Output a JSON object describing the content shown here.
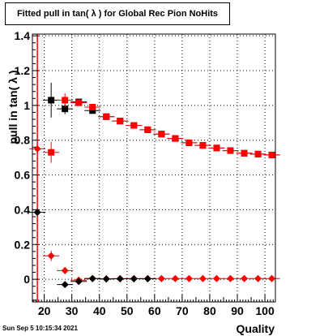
{
  "chart_data": {
    "type": "scatter",
    "title": "Fitted pull in tan( λ ) for Global Rec Pion NoHits",
    "xlabel": "Quality",
    "ylabel": "pull in tan( λ )",
    "xlim": [
      15.7,
      103.8
    ],
    "ylim": [
      -0.13,
      1.41
    ],
    "xticks": [
      20,
      30,
      40,
      50,
      60,
      70,
      80,
      90,
      100
    ],
    "yticks": [
      0,
      0.2,
      0.4,
      0.6,
      0.8,
      1,
      1.2,
      1.4
    ],
    "ytick_labels": [
      "0",
      "0.2",
      "0.4",
      "0.6",
      "0.8",
      "1",
      "1.2",
      "1.4"
    ],
    "grid": true,
    "series": [
      {
        "color": "#000000",
        "marker": "square",
        "points": [
          {
            "x": 22.5,
            "y": 1.03,
            "err": 0.1
          },
          {
            "x": 27.5,
            "y": 0.98,
            "err": 0.03
          },
          {
            "x": 32.5,
            "y": 1.02,
            "err": 0.015
          },
          {
            "x": 37.5,
            "y": 0.97,
            "err": 0.015
          },
          {
            "x": 42.5,
            "y": 0.935,
            "err": 0.01
          },
          {
            "x": 47.5,
            "y": 0.91,
            "err": 0.008
          },
          {
            "x": 52.5,
            "y": 0.885,
            "err": 0.008
          },
          {
            "x": 57.5,
            "y": 0.86,
            "err": 0.008
          },
          {
            "x": 62.5,
            "y": 0.835,
            "err": 0.008
          },
          {
            "x": 67.5,
            "y": 0.81,
            "err": 0.008
          },
          {
            "x": 72.5,
            "y": 0.785,
            "err": 0.008
          },
          {
            "x": 77.5,
            "y": 0.77,
            "err": 0.008
          },
          {
            "x": 82.5,
            "y": 0.755,
            "err": 0.008
          },
          {
            "x": 87.5,
            "y": 0.74,
            "err": 0.008
          },
          {
            "x": 92.5,
            "y": 0.725,
            "err": 0.008
          },
          {
            "x": 97.5,
            "y": 0.72,
            "err": 0.008
          },
          {
            "x": 102.5,
            "y": 0.715,
            "err": 0.008
          }
        ]
      },
      {
        "color": "#ff0000",
        "marker": "square",
        "points": [
          {
            "x": 22.5,
            "y": 0.73,
            "err": 0.06
          },
          {
            "x": 27.5,
            "y": 1.03,
            "err": 0.04
          },
          {
            "x": 32.5,
            "y": 1.015,
            "err": 0.015
          },
          {
            "x": 37.5,
            "y": 0.99,
            "err": 0.015
          },
          {
            "x": 42.5,
            "y": 0.935,
            "err": 0.01
          },
          {
            "x": 47.5,
            "y": 0.91,
            "err": 0.008
          },
          {
            "x": 52.5,
            "y": 0.885,
            "err": 0.008
          },
          {
            "x": 57.5,
            "y": 0.86,
            "err": 0.008
          },
          {
            "x": 62.5,
            "y": 0.835,
            "err": 0.008
          },
          {
            "x": 67.5,
            "y": 0.81,
            "err": 0.008
          },
          {
            "x": 72.5,
            "y": 0.785,
            "err": 0.008
          },
          {
            "x": 77.5,
            "y": 0.77,
            "err": 0.008
          },
          {
            "x": 82.5,
            "y": 0.755,
            "err": 0.008
          },
          {
            "x": 87.5,
            "y": 0.74,
            "err": 0.008
          },
          {
            "x": 92.5,
            "y": 0.725,
            "err": 0.008
          },
          {
            "x": 97.5,
            "y": 0.72,
            "err": 0.008
          },
          {
            "x": 102.5,
            "y": 0.715,
            "err": 0.008
          }
        ]
      },
      {
        "color": "#ff0000",
        "marker": "diamond",
        "points": [
          {
            "x": 17.5,
            "y": 0.75,
            "err": 0.0
          },
          {
            "x": 22.5,
            "y": 0.135,
            "err": 0.03
          },
          {
            "x": 27.5,
            "y": 0.05,
            "err": 0.02
          },
          {
            "x": 32.5,
            "y": -0.005,
            "err": 0.01
          },
          {
            "x": 37.5,
            "y": 0.005,
            "err": 0.005
          },
          {
            "x": 42.5,
            "y": 0.003,
            "err": 0.004
          },
          {
            "x": 47.5,
            "y": 0.004,
            "err": 0.004
          },
          {
            "x": 52.5,
            "y": 0.004,
            "err": 0.004
          },
          {
            "x": 57.5,
            "y": 0.004,
            "err": 0.004
          },
          {
            "x": 62.5,
            "y": 0.004,
            "err": 0.004
          },
          {
            "x": 67.5,
            "y": 0.004,
            "err": 0.004
          },
          {
            "x": 72.5,
            "y": 0.004,
            "err": 0.004
          },
          {
            "x": 77.5,
            "y": 0.004,
            "err": 0.004
          },
          {
            "x": 82.5,
            "y": 0.004,
            "err": 0.004
          },
          {
            "x": 87.5,
            "y": 0.004,
            "err": 0.004
          },
          {
            "x": 92.5,
            "y": 0.004,
            "err": 0.004
          },
          {
            "x": 97.5,
            "y": 0.004,
            "err": 0.004
          },
          {
            "x": 102.5,
            "y": 0.004,
            "err": 0.004
          }
        ]
      },
      {
        "color": "#000000",
        "marker": "diamond",
        "points": [
          {
            "x": 17.5,
            "y": 0.385,
            "err": 0.0
          },
          {
            "x": 27.5,
            "y": -0.03,
            "err": 0.01
          },
          {
            "x": 32.5,
            "y": -0.012,
            "err": 0.008
          },
          {
            "x": 37.5,
            "y": 0.004,
            "err": 0.005
          },
          {
            "x": 42.5,
            "y": 0.002,
            "err": 0.004
          },
          {
            "x": 47.5,
            "y": 0.003,
            "err": 0.004
          },
          {
            "x": 52.5,
            "y": 0.003,
            "err": 0.004
          },
          {
            "x": 57.5,
            "y": 0.003,
            "err": 0.004
          }
        ]
      }
    ],
    "vertical_line": {
      "x": 17.5,
      "color": "#ff0000"
    }
  },
  "footer": "Sun Sep  5 10:15:34 2021"
}
